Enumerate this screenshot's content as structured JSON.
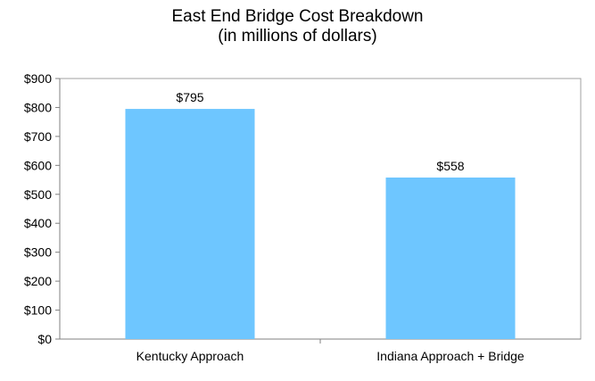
{
  "chart_data": {
    "type": "bar",
    "title": "East End Bridge Cost Breakdown",
    "subtitle": "(in millions of dollars)",
    "categories": [
      "Kentucky Approach",
      "Indiana Approach + Bridge"
    ],
    "values": [
      795,
      558
    ],
    "data_labels": [
      "$795",
      "$558"
    ],
    "ylim": [
      0,
      900
    ],
    "yticks": [
      0,
      100,
      200,
      300,
      400,
      500,
      600,
      700,
      800,
      900
    ],
    "ytick_labels": [
      "$0",
      "$100",
      "$200",
      "$300",
      "$400",
      "$500",
      "$600",
      "$700",
      "$800",
      "$900"
    ],
    "xlabel": "",
    "ylabel": "",
    "grid": false,
    "legend": "none",
    "bar_color": "#6ec6ff"
  }
}
